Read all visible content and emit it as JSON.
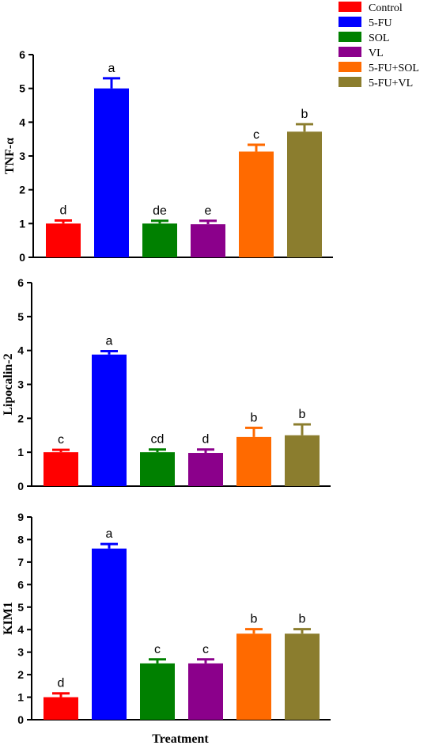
{
  "legend": [
    {
      "name": "Control",
      "color": "#ff0000"
    },
    {
      "name": "5-FU",
      "color": "#0000ff"
    },
    {
      "name": "SOL",
      "color": "#008000"
    },
    {
      "name": "VL",
      "color": "#8b008b"
    },
    {
      "name": "5-FU+SOL",
      "color": "#ff6a00"
    },
    {
      "name": "5-FU+VL",
      "color": "#8b7d2e"
    }
  ],
  "xlabel": "Treatment",
  "chart_data": [
    {
      "type": "bar",
      "ylabel": "TNF-α",
      "ylim": [
        0,
        6
      ],
      "yticks": [
        "0",
        "1",
        "2",
        "3",
        "4",
        "5",
        "6"
      ],
      "values": [
        1.0,
        5.0,
        1.0,
        0.98,
        3.13,
        3.72
      ],
      "errors": [
        0.09,
        0.3,
        0.08,
        0.1,
        0.2,
        0.22
      ],
      "labels": [
        "d",
        "a",
        "de",
        "e",
        "c",
        "b"
      ]
    },
    {
      "type": "bar",
      "ylabel": "Lipocalin-2",
      "ylim": [
        0,
        6
      ],
      "yticks": [
        "0",
        "1",
        "2",
        "3",
        "4",
        "5",
        "6"
      ],
      "values": [
        1.0,
        3.88,
        1.0,
        0.98,
        1.45,
        1.5
      ],
      "errors": [
        0.07,
        0.1,
        0.08,
        0.1,
        0.27,
        0.32
      ],
      "labels": [
        "c",
        "a",
        "cd",
        "d",
        "b",
        "b"
      ]
    },
    {
      "type": "bar",
      "ylabel": "KIM1",
      "ylim": [
        0,
        9
      ],
      "yticks": [
        "0",
        "1",
        "2",
        "3",
        "4",
        "5",
        "6",
        "7",
        "8",
        "9"
      ],
      "values": [
        1.0,
        7.6,
        2.5,
        2.5,
        3.82,
        3.82
      ],
      "errors": [
        0.17,
        0.2,
        0.18,
        0.18,
        0.2,
        0.2
      ],
      "labels": [
        "d",
        "a",
        "c",
        "c",
        "b",
        "b"
      ]
    }
  ]
}
